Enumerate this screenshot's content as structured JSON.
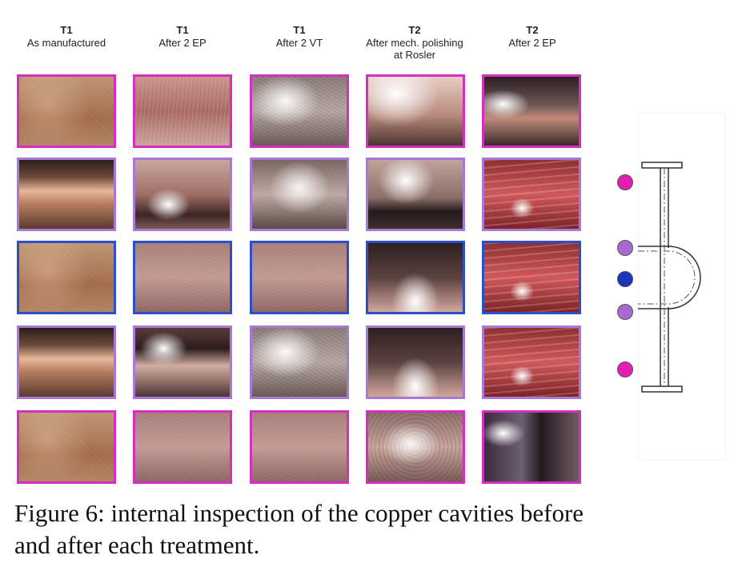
{
  "columns": [
    {
      "tag": "T1",
      "lines": [
        "As manufactured"
      ]
    },
    {
      "tag": "T1",
      "lines": [
        "After 2 EP"
      ]
    },
    {
      "tag": "T1",
      "lines": [
        "After 2 VT"
      ]
    },
    {
      "tag": "T2",
      "lines": [
        "After mech. polishing",
        "at Rosler"
      ]
    },
    {
      "tag": "T2",
      "lines": [
        "After 2 EP"
      ]
    }
  ],
  "rows": [
    {
      "marker_color": "#e21fb2",
      "border_color": "#d42fc0"
    },
    {
      "marker_color": "#a96ad0",
      "border_color": "#a978d6"
    },
    {
      "marker_color": "#1b35b8",
      "border_color": "#2a4fc8"
    },
    {
      "marker_color": "#a96ad0",
      "border_color": "#a978d6"
    },
    {
      "marker_color": "#e21fb2",
      "border_color": "#d42fc0"
    }
  ],
  "caption": {
    "line1": "Figure 6: internal inspection of the copper cavities before",
    "line2": "and after each treatment."
  }
}
